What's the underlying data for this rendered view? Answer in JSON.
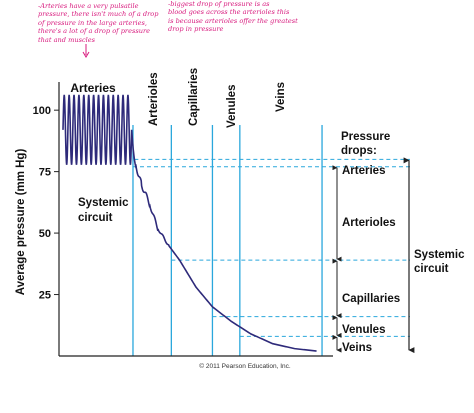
{
  "annotations": {
    "left": "-Arteries have a very pulsatile\npressure, there isn't much of a drop\nof pressure in the large arteries,\nthere's a lot of a drop of pressure\nthat and muscles",
    "right": "-biggest drop of pressure is as\nblood goes across the arterioles this\nis because arterioles offer the greatest\ndrop in pressure"
  },
  "copyright": "© 2011 Pearson Education, Inc.",
  "colors": {
    "curve": "#2e2a7a",
    "divider": "#2aa7dc",
    "axis": "#222222",
    "annotation": "#d81b7e"
  },
  "chart_data": {
    "type": "line",
    "title": "",
    "xlabel": "",
    "ylabel": "Average pressure (mm Hg)",
    "ylim": [
      0,
      120
    ],
    "yticks": [
      25,
      50,
      75,
      100
    ],
    "regions": [
      "Arteries",
      "Arterioles",
      "Capillaries",
      "Venules",
      "Veins"
    ],
    "curve_label": "Systemic\ncircuit",
    "pressure_drops": {
      "title": "Pressure\ndrops:",
      "levels": [
        {
          "label": "Arteries",
          "value": 80
        },
        {
          "label": "Arterioles",
          "value": 77
        },
        {
          "label": "Capillaries",
          "value": 39
        },
        {
          "label": "Venules",
          "value": 16
        },
        {
          "label": "Veins",
          "value": 8
        }
      ],
      "bottom_value": 2
    },
    "bracket_label": "Systemic\ncircuit",
    "series": [
      {
        "name": "",
        "pulsatile": {
          "min": 78,
          "max": 106,
          "cycles": 14
        },
        "x": [
          0,
          0.1,
          0.25,
          0.27,
          0.28,
          0.3,
          0.33,
          0.36,
          0.4,
          0.44,
          0.5,
          0.56,
          0.63,
          0.7,
          0.78,
          0.86,
          0.94
        ],
        "y": [
          92,
          92,
          88,
          85,
          78,
          70,
          62,
          52,
          45,
          39,
          28,
          20,
          14,
          9,
          5,
          3,
          2
        ]
      }
    ]
  }
}
